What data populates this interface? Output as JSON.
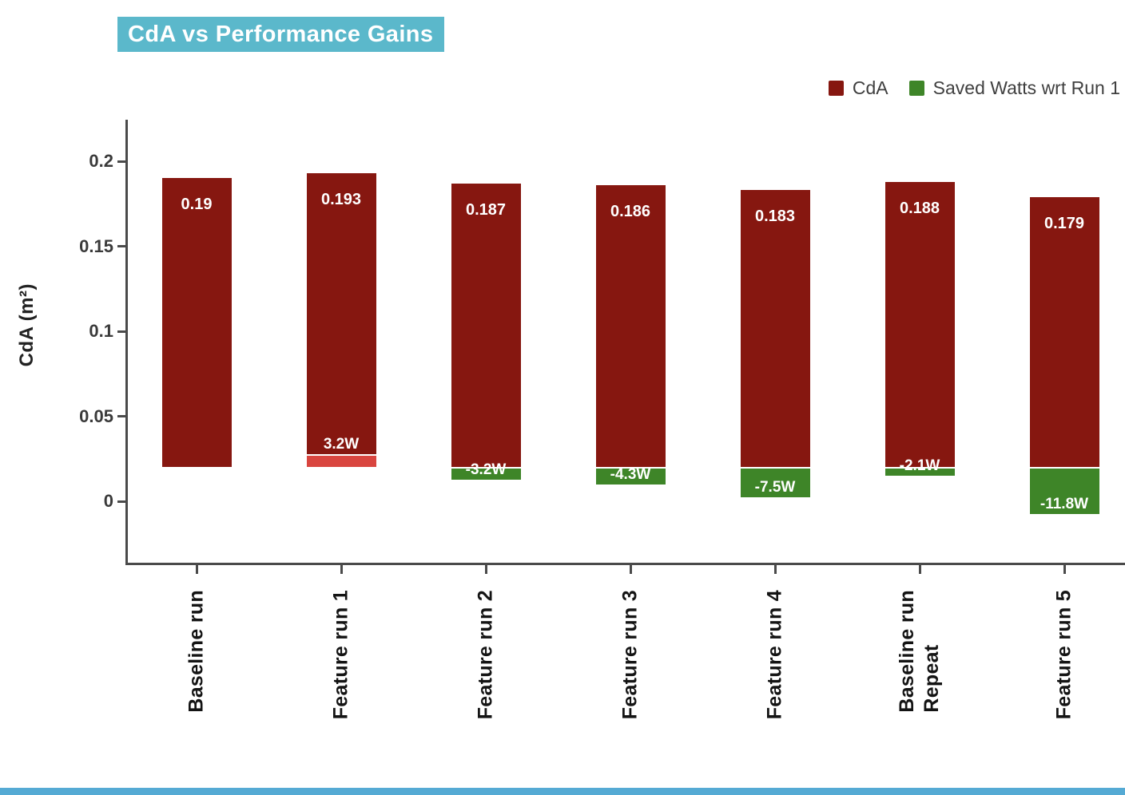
{
  "title": "CdA vs Performance Gains",
  "legend": {
    "items": [
      {
        "label": "CdA",
        "color": "#861710"
      },
      {
        "label": "Saved Watts wrt Run 1",
        "color": "#3E8528"
      }
    ]
  },
  "y_axis": {
    "label": "CdA (m²)",
    "ticks": [
      {
        "value": 0.2,
        "label": "0.2"
      },
      {
        "value": 0.15,
        "label": "0.15"
      },
      {
        "value": 0.1,
        "label": "0.1"
      },
      {
        "value": 0.05,
        "label": "0.05"
      },
      {
        "value": 0,
        "label": "0"
      }
    ]
  },
  "chart_data": {
    "type": "bar",
    "title": "CdA vs Performance Gains",
    "xlabel": "",
    "ylabel": "CdA (m²)",
    "ylim": [
      -0.04,
      0.225
    ],
    "yticks": [
      0,
      0.05,
      0.1,
      0.15,
      0.2
    ],
    "grid": false,
    "legend_position": "top-right",
    "bar_base": 0.02,
    "categories": [
      "Baseline run",
      "Feature run 1",
      "Feature run 2",
      "Feature run 3",
      "Feature run 4",
      "Baseline run Repeat",
      "Feature run 5"
    ],
    "category_label_lines": [
      [
        "Baseline run"
      ],
      [
        "Feature run 1"
      ],
      [
        "Feature run 2"
      ],
      [
        "Feature run 3"
      ],
      [
        "Feature run 4"
      ],
      [
        "Baseline run",
        "Repeat"
      ],
      [
        "Feature run 5"
      ]
    ],
    "series": [
      {
        "name": "CdA",
        "unit": "m²",
        "values": [
          0.19,
          0.193,
          0.187,
          0.186,
          0.183,
          0.188,
          0.179
        ],
        "labels": [
          "0.19",
          "0.193",
          "0.187",
          "0.186",
          "0.183",
          "0.188",
          "0.179"
        ]
      },
      {
        "name": "Saved Watts wrt Run 1",
        "unit": "W",
        "values": [
          null,
          3.2,
          -3.2,
          -4.3,
          -7.5,
          -2.1,
          -11.8
        ],
        "labels": [
          "",
          "3.2W",
          "-3.2W",
          "-4.3W",
          "-7.5W",
          "-2.1W",
          "-11.8W"
        ]
      }
    ]
  },
  "colors": {
    "cda_bar": "#861710",
    "watts_gain_bar": "#D9453F",
    "watts_saved_bar": "#3E8528",
    "title_bg": "#5BB8CB",
    "title_text": "#FFFFFF",
    "bottom_strip": "#55AAD4",
    "axis": "#4A4A4A"
  }
}
